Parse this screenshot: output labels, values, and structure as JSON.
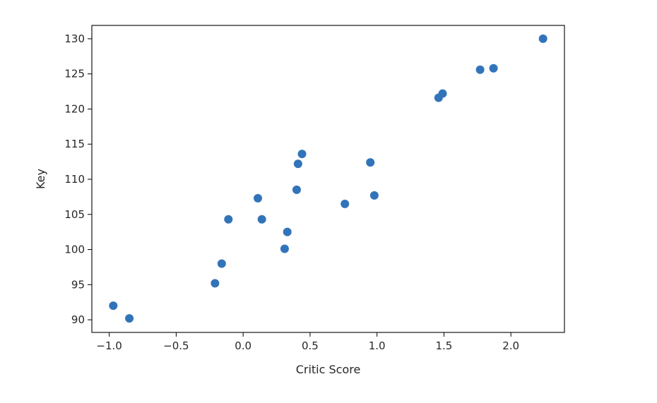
{
  "chart_data": {
    "type": "scatter",
    "title": "",
    "xlabel": "Critic Score",
    "ylabel": "Key",
    "xlim": [
      -1.13,
      2.4
    ],
    "ylim": [
      88.2,
      131.9
    ],
    "x_ticks": [
      -1.0,
      -0.5,
      0.0,
      0.5,
      1.0,
      1.5,
      2.0
    ],
    "x_tick_labels": [
      "−1.0",
      "−0.5",
      "0.0",
      "0.5",
      "1.0",
      "1.5",
      "2.0"
    ],
    "y_ticks": [
      90,
      95,
      100,
      105,
      110,
      115,
      120,
      125,
      130
    ],
    "y_tick_labels": [
      "90",
      "95",
      "100",
      "105",
      "110",
      "115",
      "120",
      "125",
      "130"
    ],
    "grid": false,
    "marker_color": "#3274b9",
    "points": [
      {
        "x": -0.97,
        "y": 92.0
      },
      {
        "x": -0.85,
        "y": 90.2
      },
      {
        "x": -0.21,
        "y": 95.2
      },
      {
        "x": -0.16,
        "y": 98.0
      },
      {
        "x": -0.11,
        "y": 104.3
      },
      {
        "x": 0.11,
        "y": 107.3
      },
      {
        "x": 0.14,
        "y": 104.3
      },
      {
        "x": 0.31,
        "y": 100.1
      },
      {
        "x": 0.33,
        "y": 102.5
      },
      {
        "x": 0.4,
        "y": 108.5
      },
      {
        "x": 0.41,
        "y": 112.2
      },
      {
        "x": 0.44,
        "y": 113.6
      },
      {
        "x": 0.76,
        "y": 106.5
      },
      {
        "x": 0.95,
        "y": 112.4
      },
      {
        "x": 0.98,
        "y": 107.7
      },
      {
        "x": 1.46,
        "y": 121.6
      },
      {
        "x": 1.49,
        "y": 122.2
      },
      {
        "x": 1.77,
        "y": 125.6
      },
      {
        "x": 1.87,
        "y": 125.8
      },
      {
        "x": 2.24,
        "y": 130.0
      }
    ]
  }
}
